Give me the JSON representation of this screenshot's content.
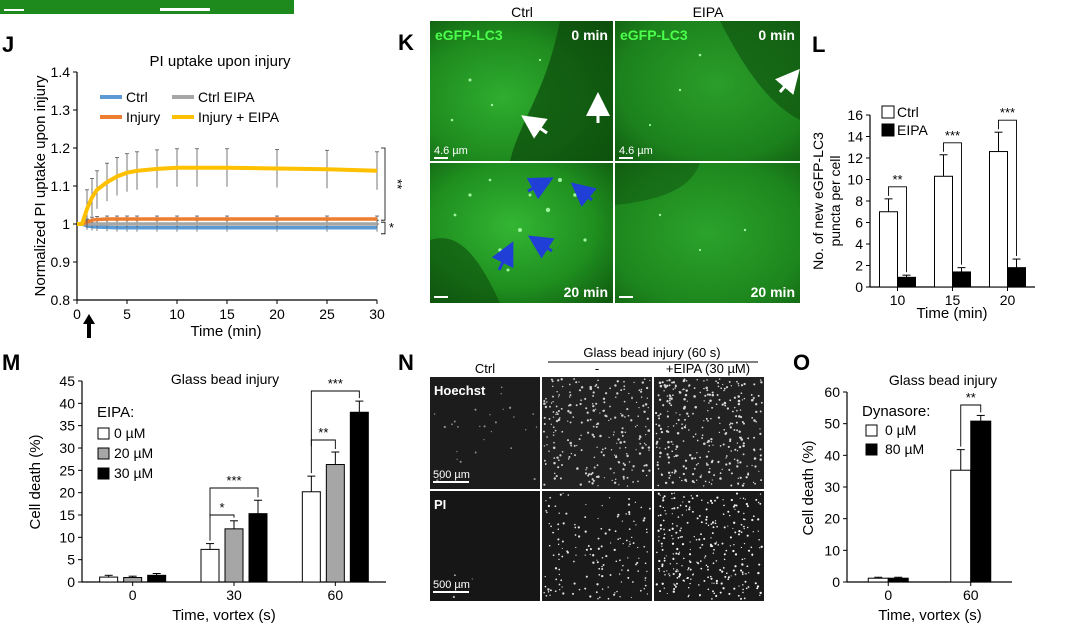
{
  "panel_letters": {
    "J": "J",
    "K": "K",
    "L": "L",
    "M": "M",
    "N": "N",
    "O": "O"
  },
  "colors": {
    "ctrl": "#5b9bd5",
    "ctrl_eipa": "#a6a6a6",
    "injury": "#ed7d31",
    "injury_eipa": "#ffc000",
    "fluor_green": "#1e8a1e",
    "arrow_blue": "#1f3fd6"
  },
  "panel_k": {
    "col_titles": [
      "Ctrl",
      "EIPA"
    ],
    "marker": "eGFP-LC3",
    "times": [
      "0 min",
      "20 min"
    ],
    "scale": "4.6 µm"
  },
  "panel_n": {
    "group_title": "Glass bead injury (60 s)",
    "col_titles": [
      "Ctrl",
      "-",
      "+EIPA (30 µM)"
    ],
    "row_labels": [
      "Hoechst",
      "PI"
    ],
    "scale": "500 µm"
  },
  "chart_data": [
    {
      "panel": "J",
      "type": "line",
      "title": "PI uptake upon injury",
      "xlabel": "Time (min)",
      "ylabel": "Normalized PI uptake upon injury",
      "xlim": [
        0,
        30
      ],
      "ylim": [
        0.8,
        1.4
      ],
      "xticks": [
        "0",
        "5",
        "10",
        "15",
        "20",
        "25",
        "30"
      ],
      "yticks": [
        "0.8",
        "0.9",
        "1",
        "1.1",
        "1.2",
        "1.3",
        "1.4"
      ],
      "legend": [
        "Ctrl",
        "Ctrl EIPA",
        "Injury",
        "Injury + EIPA"
      ],
      "x": [
        0,
        0.5,
        1,
        1.5,
        2,
        3,
        4,
        5,
        6,
        8,
        10,
        12,
        15,
        20,
        25,
        30
      ],
      "series": [
        {
          "name": "Ctrl",
          "color": "#5b9bd5",
          "values": [
            1,
            1,
            0.995,
            0.993,
            0.992,
            0.991,
            0.99,
            0.99,
            0.99,
            0.99,
            0.99,
            0.99,
            0.99,
            0.99,
            0.99,
            0.99
          ],
          "err": 0.01
        },
        {
          "name": "Ctrl EIPA",
          "color": "#a6a6a6",
          "values": [
            1,
            1,
            1,
            1,
            1,
            1,
            1,
            1,
            1,
            1,
            1,
            1,
            1,
            1,
            1,
            1
          ],
          "err": 0.01
        },
        {
          "name": "Injury",
          "color": "#ed7d31",
          "values": [
            1,
            1,
            1.005,
            1.01,
            1.012,
            1.013,
            1.013,
            1.013,
            1.013,
            1.013,
            1.013,
            1.013,
            1.013,
            1.013,
            1.013,
            1.013
          ],
          "err": 0.008
        },
        {
          "name": "Injury + EIPA",
          "color": "#ffc000",
          "values": [
            1,
            1,
            1.04,
            1.07,
            1.09,
            1.11,
            1.125,
            1.135,
            1.14,
            1.145,
            1.148,
            1.148,
            1.148,
            1.146,
            1.144,
            1.14
          ],
          "err": 0.05
        }
      ],
      "arrow_at_x": 1,
      "significance": [
        "**",
        "*"
      ]
    },
    {
      "panel": "L",
      "type": "bar",
      "xlabel": "Time (min)",
      "ylabel": "No. of new eGFP-LC3 puncta per cell",
      "categories": [
        "10",
        "15",
        "20"
      ],
      "ylim": [
        0,
        16
      ],
      "yticks": [
        "0",
        "2",
        "4",
        "6",
        "8",
        "10",
        "12",
        "14",
        "16"
      ],
      "series": [
        {
          "name": "Ctrl",
          "fill": "#ffffff",
          "values": [
            7.0,
            10.3,
            12.6
          ],
          "err": [
            1.2,
            2.0,
            1.8
          ]
        },
        {
          "name": "EIPA",
          "fill": "#000000",
          "values": [
            0.9,
            1.4,
            1.8
          ],
          "err": [
            0.2,
            0.4,
            0.8
          ]
        }
      ],
      "significance": [
        "**",
        "***",
        "***"
      ]
    },
    {
      "panel": "M",
      "type": "bar",
      "title": "Glass bead injury",
      "xlabel": "Time, vortex (s)",
      "ylabel": "Cell death (%)",
      "legend_title": "EIPA:",
      "categories": [
        "0",
        "30",
        "60"
      ],
      "ylim": [
        0,
        45
      ],
      "yticks": [
        "0",
        "5",
        "10",
        "15",
        "20",
        "25",
        "30",
        "35",
        "40",
        "45"
      ],
      "series": [
        {
          "name": "0 µM",
          "fill": "#ffffff",
          "values": [
            1.1,
            7.3,
            20.2
          ],
          "err": [
            0.4,
            1.3,
            3.5
          ]
        },
        {
          "name": "20 µM",
          "fill": "#a6a6a6",
          "values": [
            1.0,
            11.9,
            26.3
          ],
          "err": [
            0.3,
            1.8,
            2.8
          ]
        },
        {
          "name": "30 µM",
          "fill": "#000000",
          "values": [
            1.5,
            15.3,
            38.0
          ],
          "err": [
            0.4,
            3.0,
            2.5
          ]
        }
      ],
      "significance": [
        "*",
        "***",
        "**",
        "***"
      ]
    },
    {
      "panel": "O",
      "type": "bar",
      "title": "Glass bead injury",
      "xlabel": "Time, vortex (s)",
      "ylabel": "Cell death (%)",
      "legend_title": "Dynasore:",
      "categories": [
        "0",
        "60"
      ],
      "ylim": [
        0,
        60
      ],
      "yticks": [
        "0",
        "10",
        "20",
        "30",
        "40",
        "50",
        "60"
      ],
      "series": [
        {
          "name": "0 µM",
          "fill": "#ffffff",
          "values": [
            1.2,
            35.3
          ],
          "err": [
            0.3,
            6.5
          ]
        },
        {
          "name": "80 µM",
          "fill": "#000000",
          "values": [
            1.2,
            50.8
          ],
          "err": [
            0.3,
            1.8
          ]
        }
      ],
      "significance": [
        "**"
      ]
    }
  ]
}
